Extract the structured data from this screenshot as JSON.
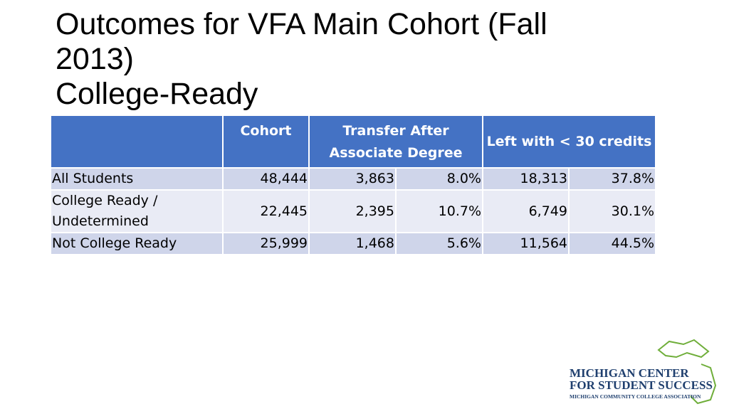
{
  "header": {
    "title": "Outcomes for VFA Main Cohort (Fall 2013)",
    "subtitle": "College-Ready"
  },
  "table": {
    "columns": [
      "Cohort",
      "Transfer After Associate Degree",
      "Left with < 30 credits"
    ],
    "rows": [
      [
        "All Students",
        "48,444",
        "3,863",
        "8.0%",
        "18,313",
        "37.8%"
      ],
      [
        "College Ready / Undetermined",
        "22,445",
        "2,395",
        "10.7%",
        "6,749",
        "30.1%"
      ],
      [
        "Not College Ready",
        "25,999",
        "1,468",
        "5.6%",
        "11,564",
        "44.5%"
      ]
    ]
  },
  "logo": {
    "line1": "MICHIGAN CENTER",
    "line2": "FOR STUDENT SUCCESS",
    "line3": "MICHIGAN COMMUNITY COLLEGE ASSOCIATION"
  }
}
